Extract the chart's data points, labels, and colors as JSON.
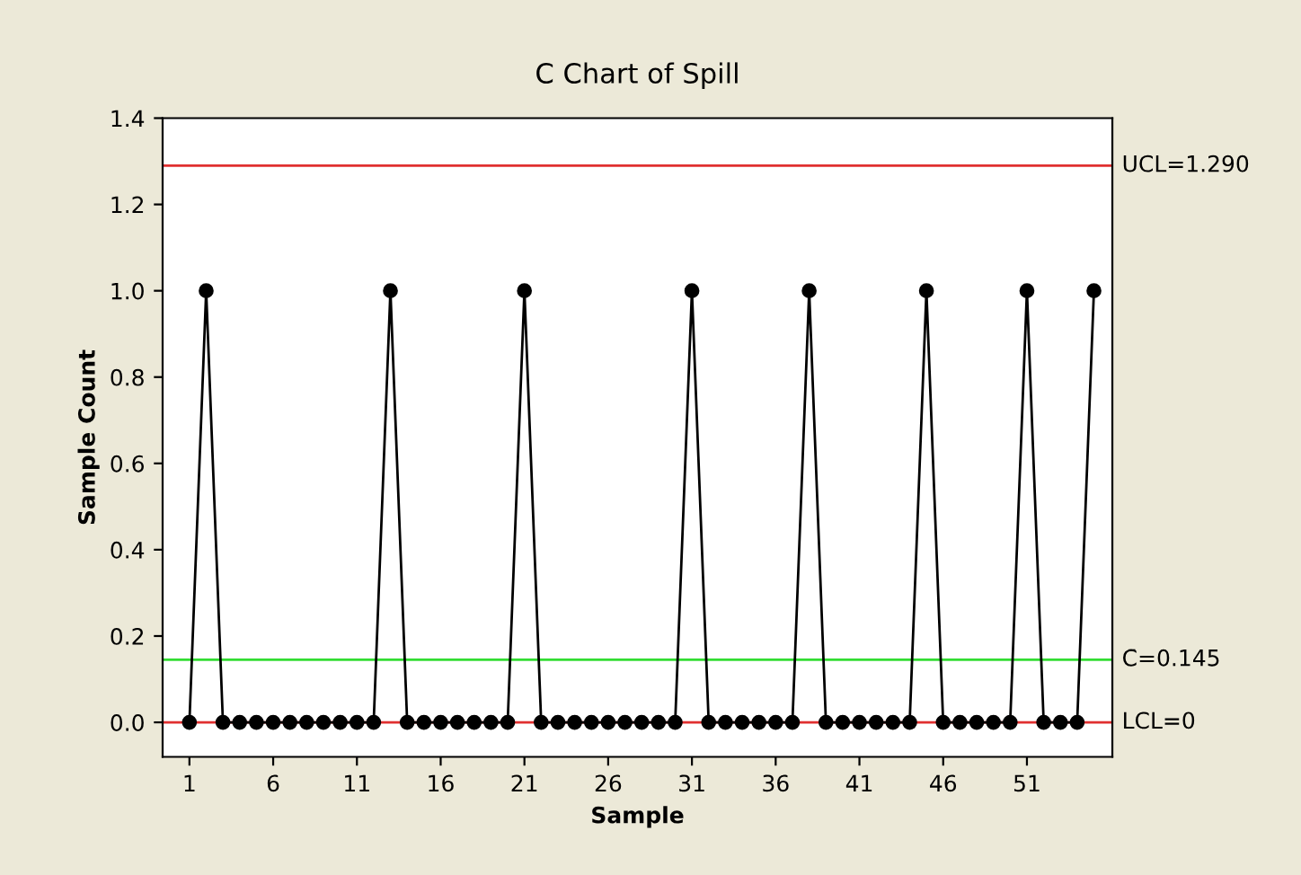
{
  "chart_data": {
    "type": "line",
    "title": "C Chart of Spill",
    "xlabel": "Sample",
    "ylabel": "Sample Count",
    "x": [
      1,
      2,
      3,
      4,
      5,
      6,
      7,
      8,
      9,
      10,
      11,
      12,
      13,
      14,
      15,
      16,
      17,
      18,
      19,
      20,
      21,
      22,
      23,
      24,
      25,
      26,
      27,
      28,
      29,
      30,
      31,
      32,
      33,
      34,
      35,
      36,
      37,
      38,
      39,
      40,
      41,
      42,
      43,
      44,
      45,
      46,
      47,
      48,
      49,
      50,
      51,
      52,
      53,
      54,
      55
    ],
    "series": [
      {
        "color": "#000000",
        "values": [
          0,
          1,
          0,
          0,
          0,
          0,
          0,
          0,
          0,
          0,
          0,
          0,
          1,
          0,
          0,
          0,
          0,
          0,
          0,
          0,
          1,
          0,
          0,
          0,
          0,
          0,
          0,
          0,
          0,
          0,
          1,
          0,
          0,
          0,
          0,
          0,
          0,
          1,
          0,
          0,
          0,
          0,
          0,
          0,
          1,
          0,
          0,
          0,
          0,
          0,
          1,
          0,
          0,
          0,
          1
        ]
      }
    ],
    "marker": "circle",
    "line_style": "solid",
    "grid": false,
    "legend": false,
    "xlim": [
      -0.6,
      56.1
    ],
    "xticks": [
      1,
      6,
      11,
      16,
      21,
      26,
      31,
      36,
      41,
      46,
      51
    ],
    "ylim": [
      -0.08,
      1.4
    ],
    "yticks": [
      {
        "value": 0,
        "label": "0.0"
      },
      0.2,
      0.4,
      0.6,
      0.8,
      {
        "value": 1,
        "label": "1.0"
      },
      1.2,
      1.4
    ],
    "ref_lines": [
      {
        "axis": "y",
        "value": 1.29,
        "label": "UCL=1.290",
        "color": "#e03030"
      },
      {
        "axis": "y",
        "value": 0.145,
        "label": "C̄=0.145",
        "color": "#33dd33"
      },
      {
        "axis": "y",
        "value": 0,
        "label": "LCL=0",
        "color": "#e03030"
      }
    ]
  }
}
